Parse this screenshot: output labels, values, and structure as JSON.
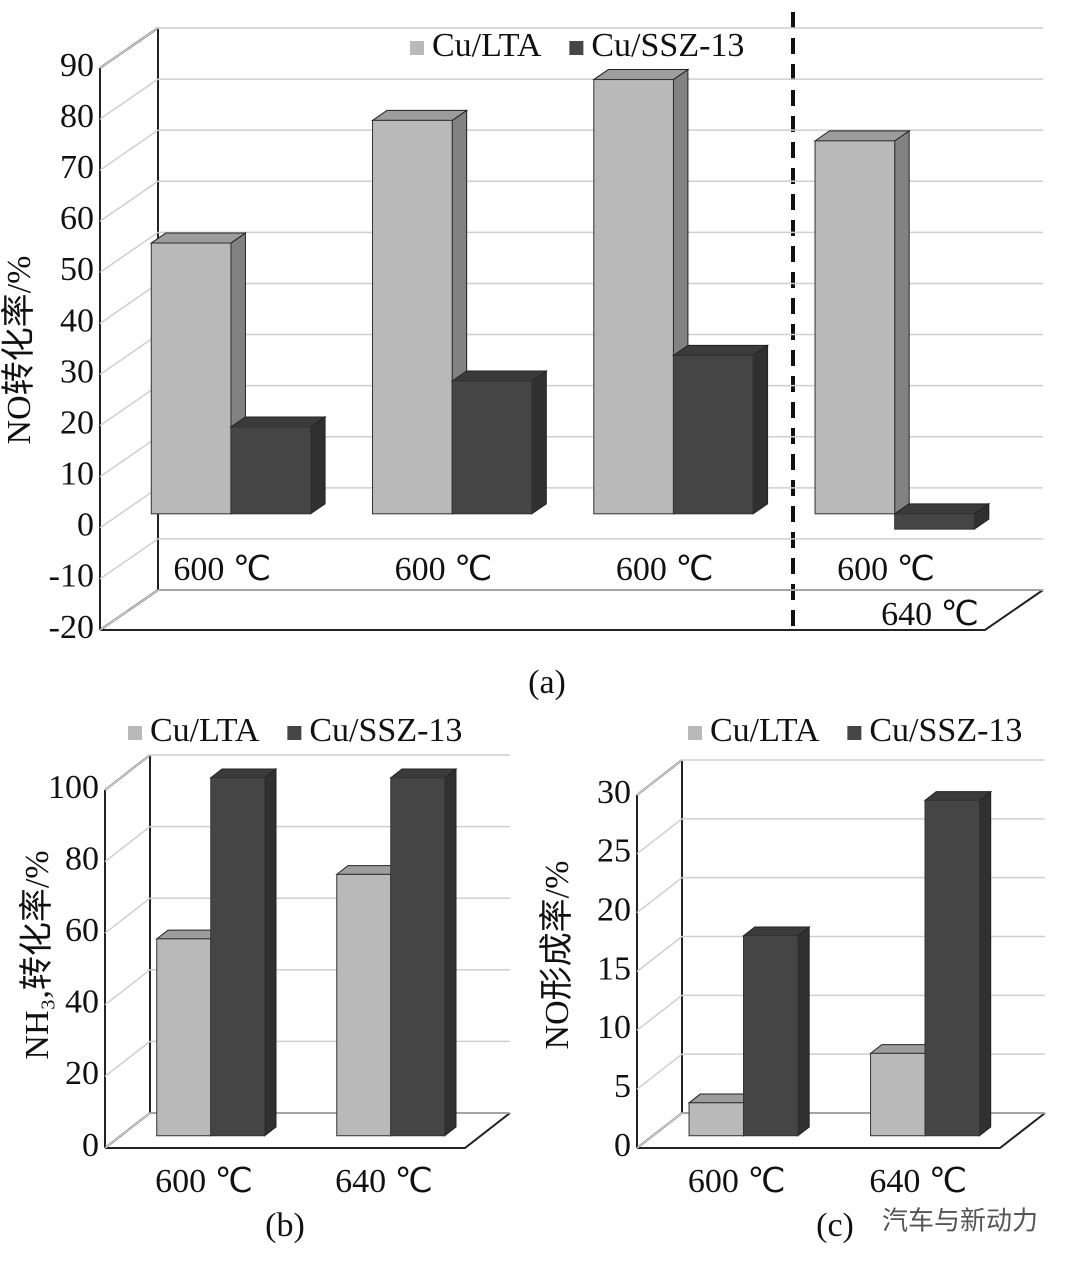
{
  "chart_data": [
    {
      "type": "bar",
      "caption": "(a)",
      "ylabel": "NO转化率/%",
      "categories": [
        "600 ℃",
        "600 ℃",
        "600 ℃",
        "600 ℃"
      ],
      "annotations": [
        "640 ℃"
      ],
      "series": [
        {
          "name": "Cu/LTA",
          "color": "#b9b9b9",
          "values": [
            53,
            77,
            85,
            73
          ]
        },
        {
          "name": "Cu/SSZ-13",
          "color": "#454545",
          "values": [
            17,
            26,
            31,
            -3
          ]
        }
      ],
      "ylim": [
        -20,
        90
      ],
      "yticks": [
        -20,
        -10,
        0,
        10,
        20,
        30,
        40,
        50,
        60,
        70,
        80,
        90
      ],
      "grid": true,
      "legend": "top"
    },
    {
      "type": "bar",
      "caption": "(b)",
      "ylabel": "NH₃,转化率/%",
      "categories": [
        "600 ℃",
        "640 ℃"
      ],
      "series": [
        {
          "name": "Cu/LTA",
          "color": "#b9b9b9",
          "values": [
            55,
            73
          ]
        },
        {
          "name": "Cu/SSZ-13",
          "color": "#454545",
          "values": [
            100,
            100
          ]
        }
      ],
      "ylim": [
        0,
        100
      ],
      "yticks": [
        0,
        20,
        40,
        60,
        80,
        100
      ],
      "grid": true,
      "legend": "top"
    },
    {
      "type": "bar",
      "caption": "(c)",
      "ylabel": "NO形成率/%",
      "categories": [
        "600 ℃",
        "640 ℃"
      ],
      "series": [
        {
          "name": "Cu/LTA",
          "color": "#b9b9b9",
          "values": [
            2.8,
            7
          ]
        },
        {
          "name": "Cu/SSZ-13",
          "color": "#454545",
          "values": [
            17,
            28.5
          ]
        }
      ],
      "ylim": [
        0,
        30
      ],
      "yticks": [
        0,
        5,
        10,
        15,
        20,
        25,
        30
      ],
      "grid": true,
      "legend": "top",
      "watermark": "汽车与新动力"
    }
  ]
}
